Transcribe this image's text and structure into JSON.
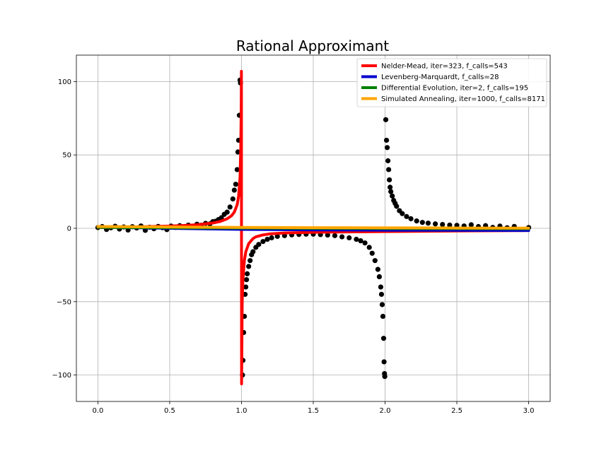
{
  "chart_data": {
    "type": "scatter",
    "title": "Rational Approximant",
    "xlabel": "",
    "ylabel": "",
    "xlim": [
      -0.15,
      3.15
    ],
    "ylim": [
      -118,
      118
    ],
    "x_ticks": [
      0.0,
      0.5,
      1.0,
      1.5,
      2.0,
      2.5,
      3.0
    ],
    "x_tick_labels": [
      "0.0",
      "0.5",
      "1.0",
      "1.5",
      "2.0",
      "2.5",
      "3.0"
    ],
    "y_ticks": [
      -100,
      -50,
      0,
      50,
      100
    ],
    "y_tick_labels": [
      "−100",
      "−50",
      "0",
      "50",
      "100"
    ],
    "grid": true,
    "legend_position": "top-right",
    "scatter_series": {
      "color": "#000000",
      "points": [
        [
          0.0,
          0.5
        ],
        [
          0.03,
          1.2
        ],
        [
          0.06,
          -0.8
        ],
        [
          0.09,
          0.3
        ],
        [
          0.12,
          1.4
        ],
        [
          0.15,
          -0.5
        ],
        [
          0.18,
          0.9
        ],
        [
          0.21,
          -1.2
        ],
        [
          0.24,
          1.1
        ],
        [
          0.27,
          0.2
        ],
        [
          0.3,
          1.6
        ],
        [
          0.33,
          -1.4
        ],
        [
          0.36,
          0.7
        ],
        [
          0.39,
          -0.3
        ],
        [
          0.42,
          1.3
        ],
        [
          0.45,
          0.4
        ],
        [
          0.48,
          -0.9
        ],
        [
          0.51,
          1.5
        ],
        [
          0.54,
          0.6
        ],
        [
          0.57,
          1.8
        ],
        [
          0.6,
          0.9
        ],
        [
          0.63,
          2.2
        ],
        [
          0.66,
          1.4
        ],
        [
          0.69,
          2.8
        ],
        [
          0.72,
          2.1
        ],
        [
          0.75,
          3.4
        ],
        [
          0.78,
          3.0
        ],
        [
          0.8,
          4.5
        ],
        [
          0.82,
          4.8
        ],
        [
          0.84,
          6.0
        ],
        [
          0.86,
          7.2
        ],
        [
          0.88,
          9.5
        ],
        [
          0.9,
          11.0
        ],
        [
          0.92,
          14.5
        ],
        [
          0.94,
          20.0
        ],
        [
          0.95,
          26.0
        ],
        [
          0.96,
          30.0
        ],
        [
          0.97,
          40.0
        ],
        [
          0.975,
          52.0
        ],
        [
          0.98,
          60.0
        ],
        [
          0.985,
          77.0
        ],
        [
          0.99,
          101.0
        ],
        [
          0.993,
          99.0
        ],
        [
          1.007,
          -100.0
        ],
        [
          1.01,
          -90.0
        ],
        [
          1.015,
          -71.0
        ],
        [
          1.02,
          -60.0
        ],
        [
          1.025,
          -45.0
        ],
        [
          1.03,
          -40.0
        ],
        [
          1.035,
          -35.0
        ],
        [
          1.04,
          -31.0
        ],
        [
          1.05,
          -26.0
        ],
        [
          1.06,
          -22.0
        ],
        [
          1.07,
          -18.0
        ],
        [
          1.08,
          -16.0
        ],
        [
          1.1,
          -13.0
        ],
        [
          1.12,
          -11.0
        ],
        [
          1.15,
          -9.0
        ],
        [
          1.18,
          -7.5
        ],
        [
          1.21,
          -6.5
        ],
        [
          1.25,
          -5.5
        ],
        [
          1.3,
          -5.0
        ],
        [
          1.35,
          -4.5
        ],
        [
          1.4,
          -4.2
        ],
        [
          1.45,
          -4.0
        ],
        [
          1.5,
          -4.0
        ],
        [
          1.55,
          -4.3
        ],
        [
          1.6,
          -4.6
        ],
        [
          1.65,
          -5.0
        ],
        [
          1.7,
          -5.8
        ],
        [
          1.75,
          -6.5
        ],
        [
          1.8,
          -7.5
        ],
        [
          1.83,
          -8.5
        ],
        [
          1.86,
          -10.0
        ],
        [
          1.89,
          -13.0
        ],
        [
          1.91,
          -17.0
        ],
        [
          1.93,
          -22.0
        ],
        [
          1.95,
          -28.0
        ],
        [
          1.96,
          -33.0
        ],
        [
          1.97,
          -40.0
        ],
        [
          1.975,
          -45.0
        ],
        [
          1.98,
          -52.0
        ],
        [
          1.985,
          -60.0
        ],
        [
          1.99,
          -75.0
        ],
        [
          1.993,
          -91.0
        ],
        [
          1.996,
          -99.0
        ],
        [
          1.998,
          -101.0
        ],
        [
          2.005,
          74.0
        ],
        [
          2.01,
          60.0
        ],
        [
          2.015,
          55.0
        ],
        [
          2.02,
          46.0
        ],
        [
          2.025,
          40.0
        ],
        [
          2.03,
          33.0
        ],
        [
          2.035,
          28.0
        ],
        [
          2.04,
          25.0
        ],
        [
          2.05,
          22.0
        ],
        [
          2.06,
          19.0
        ],
        [
          2.07,
          17.0
        ],
        [
          2.08,
          15.0
        ],
        [
          2.1,
          12.0
        ],
        [
          2.12,
          10.0
        ],
        [
          2.15,
          8.0
        ],
        [
          2.18,
          6.5
        ],
        [
          2.22,
          5.0
        ],
        [
          2.26,
          4.0
        ],
        [
          2.3,
          3.5
        ],
        [
          2.35,
          3.0
        ],
        [
          2.4,
          2.6
        ],
        [
          2.45,
          2.2
        ],
        [
          2.5,
          2.0
        ],
        [
          2.55,
          1.6
        ],
        [
          2.6,
          2.4
        ],
        [
          2.65,
          1.2
        ],
        [
          2.7,
          1.8
        ],
        [
          2.75,
          0.6
        ],
        [
          2.8,
          1.5
        ],
        [
          2.85,
          0.4
        ],
        [
          2.9,
          1.3
        ],
        [
          2.95,
          -0.8
        ],
        [
          3.0,
          0.5
        ]
      ]
    },
    "series": [
      {
        "name": "Nelder-Mead, iter=323, f_calls=543",
        "color": "#ff0000",
        "type": "line",
        "x": [
          0.0,
          0.3,
          0.5,
          0.6,
          0.7,
          0.8,
          0.85,
          0.9,
          0.93,
          0.95,
          0.97,
          0.98,
          0.99,
          0.995,
          0.998,
          0.9995,
          1.0005,
          1.002,
          1.005,
          1.01,
          1.02,
          1.03,
          1.05,
          1.08,
          1.1,
          1.15,
          1.2,
          1.3,
          1.5,
          1.8,
          2.0,
          2.5,
          3.0
        ],
        "y": [
          0.5,
          1.0,
          1.5,
          1.9,
          2.5,
          3.6,
          4.6,
          6.5,
          8.5,
          11.0,
          16.0,
          22.0,
          35.0,
          55.0,
          80.0,
          107.0,
          -106.0,
          -90.0,
          -50.0,
          -35.0,
          -22.0,
          -16.0,
          -10.5,
          -7.0,
          -5.8,
          -4.5,
          -3.8,
          -3.2,
          -2.7,
          -2.4,
          -2.2,
          -1.8,
          -1.5
        ]
      },
      {
        "name": "Levenberg-Marquardt, f_calls=28",
        "color": "#0000cc",
        "type": "line",
        "x": [
          0.0,
          0.5,
          1.0,
          1.5,
          2.0,
          2.5,
          3.0
        ],
        "y": [
          0.8,
          0.0,
          -0.7,
          -1.1,
          -1.3,
          -1.4,
          -1.5
        ]
      },
      {
        "name": "Differential Evolution, iter=2, f_calls=195",
        "color": "#008000",
        "type": "line",
        "x": [
          0.0,
          0.5,
          1.0,
          1.5,
          2.0,
          2.5,
          3.0
        ],
        "y": [
          0.6,
          0.4,
          0.2,
          0.0,
          -0.1,
          -0.2,
          -0.3
        ]
      },
      {
        "name": "Simulated Annealing, iter=1000, f_calls=8171",
        "color": "#ffa500",
        "type": "line",
        "x": [
          0.0,
          0.5,
          1.0,
          1.5,
          2.0,
          2.5,
          3.0
        ],
        "y": [
          1.2,
          0.9,
          0.6,
          0.4,
          0.3,
          0.2,
          0.1
        ]
      }
    ]
  }
}
